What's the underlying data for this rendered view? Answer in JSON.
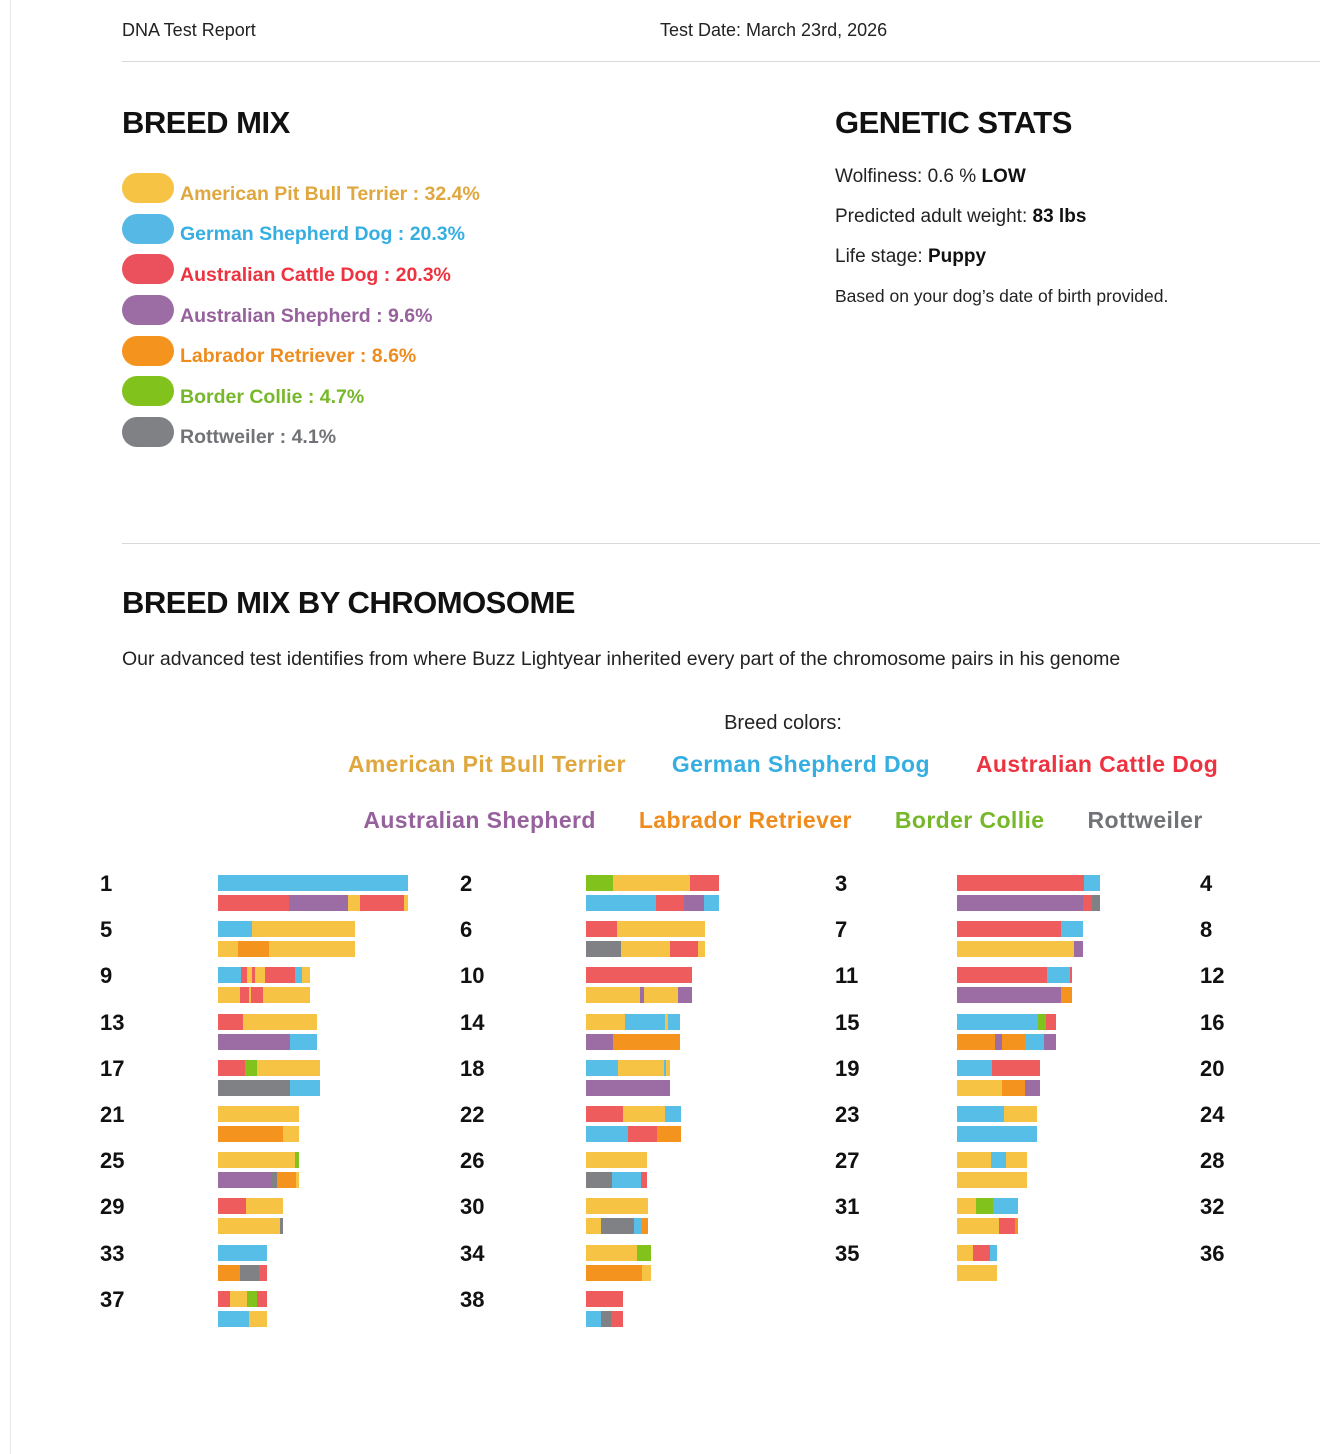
{
  "header": {
    "title": "DNA Test Report",
    "test_date": "Test Date: March 23rd, 2026"
  },
  "breed_mix": {
    "title": "BREED MIX",
    "items": [
      {
        "label": "American Pit Bull Terrier : 32.4%",
        "pill_color": "#F6C344",
        "text_color": "#DFA73D"
      },
      {
        "label": "German Shepherd Dog : 20.3%",
        "pill_color": "#56B8E4",
        "text_color": "#35AEE2"
      },
      {
        "label": "Australian Cattle Dog : 20.3%",
        "pill_color": "#EA515C",
        "text_color": "#EE3340"
      },
      {
        "label": "Australian Shepherd : 9.6%",
        "pill_color": "#9C6DA5",
        "text_color": "#96619C"
      },
      {
        "label": "Labrador Retriever : 8.6%",
        "pill_color": "#F4941F",
        "text_color": "#EE8C1E"
      },
      {
        "label": "Border Collie : 4.7%",
        "pill_color": "#82C21D",
        "text_color": "#77B82B"
      },
      {
        "label": "Rottweiler : 4.1%",
        "pill_color": "#7F8184",
        "text_color": "#717377"
      }
    ]
  },
  "genetic_stats": {
    "title": "GENETIC STATS",
    "lines": [
      {
        "prefix": "Wolfiness: 0.6 % ",
        "bold": "LOW"
      },
      {
        "prefix": "Predicted adult weight: ",
        "bold": "83 lbs"
      },
      {
        "prefix": "Life stage: ",
        "bold": "Puppy"
      }
    ],
    "note": "Based on your dog’s date of birth provided."
  },
  "chromosome_section": {
    "title": "BREED MIX BY CHROMOSOME",
    "description": "Our advanced test identifies from where Buzz Lightyear inherited every part of the chromosome pairs in his genome",
    "legend_title": "Breed colors:"
  },
  "chart_data": {
    "type": "bar",
    "subtype": "chromosome-paint-stacked-horizontal-bars",
    "title": "BREED MIX BY CHROMOSOME",
    "legend_position": "top-center",
    "breeds": [
      {
        "key": "apbt",
        "name": "American Pit Bull Terrier",
        "pct": 32.4,
        "color": "#F6C344",
        "text_color": "#DFA73D"
      },
      {
        "key": "gsd",
        "name": "German Shepherd Dog",
        "pct": 20.3,
        "color": "#57BFE7",
        "text_color": "#35AEE2"
      },
      {
        "key": "acd",
        "name": "Australian Cattle Dog",
        "pct": 20.3,
        "color": "#EE5C5D",
        "text_color": "#EE3340"
      },
      {
        "key": "as",
        "name": "Australian Shepherd",
        "pct": 9.6,
        "color": "#9C6DA5",
        "text_color": "#96619C"
      },
      {
        "key": "lab",
        "name": "Labrador Retriever",
        "pct": 8.6,
        "color": "#F4941F",
        "text_color": "#EE8C1E"
      },
      {
        "key": "bc",
        "name": "Border Collie",
        "pct": 4.7,
        "color": "#82C21D",
        "text_color": "#77B82B"
      },
      {
        "key": "rott",
        "name": "Rottweiler",
        "pct": 4.1,
        "color": "#7F8184",
        "text_color": "#717377"
      }
    ],
    "legend_rows": [
      [
        "apbt",
        "gsd",
        "acd"
      ],
      [
        "as",
        "lab",
        "bc",
        "rott"
      ]
    ],
    "segment_unit": "approx bar length in px (proportional to chromosome span); each chromosome shows its two copies (top/bottom)",
    "chromosomes": [
      {
        "n": 1,
        "pair": [
          [
            [
              "gsd",
              190
            ]
          ],
          [
            [
              "acd",
              71
            ],
            [
              "as",
              59
            ],
            [
              "apbt",
              12
            ],
            [
              "acd",
              44
            ],
            [
              "apbt",
              4
            ]
          ]
        ]
      },
      {
        "n": 2,
        "pair": [
          [
            [
              "bc",
              27
            ],
            [
              "apbt",
              77
            ],
            [
              "acd",
              29
            ]
          ],
          [
            [
              "gsd",
              70
            ],
            [
              "acd",
              28
            ],
            [
              "as",
              20
            ],
            [
              "gsd",
              15
            ]
          ]
        ]
      },
      {
        "n": 3,
        "pair": [
          [
            [
              "acd",
              127
            ],
            [
              "gsd",
              16
            ]
          ],
          [
            [
              "as",
              126
            ],
            [
              "acd",
              9
            ],
            [
              "rott",
              8
            ]
          ]
        ]
      },
      {
        "n": 4,
        "pair": [
          [],
          []
        ]
      },
      {
        "n": 5,
        "pair": [
          [
            [
              "gsd",
              34
            ],
            [
              "apbt",
              103
            ]
          ],
          [
            [
              "apbt",
              20
            ],
            [
              "lab",
              31
            ],
            [
              "apbt",
              86
            ]
          ]
        ]
      },
      {
        "n": 6,
        "pair": [
          [
            [
              "acd",
              31
            ],
            [
              "apbt",
              88
            ]
          ],
          [
            [
              "rott",
              35
            ],
            [
              "apbt",
              49
            ],
            [
              "acd",
              28
            ],
            [
              "apbt",
              7
            ]
          ]
        ]
      },
      {
        "n": 7,
        "pair": [
          [
            [
              "acd",
              104
            ],
            [
              "gsd",
              22
            ]
          ],
          [
            [
              "apbt",
              117
            ],
            [
              "as",
              9
            ]
          ]
        ]
      },
      {
        "n": 8,
        "pair": [
          [],
          []
        ]
      },
      {
        "n": 9,
        "pair": [
          [
            [
              "gsd",
              23
            ],
            [
              "acd",
              6
            ],
            [
              "apbt",
              5
            ],
            [
              "acd",
              3
            ],
            [
              "apbt",
              10
            ],
            [
              "acd",
              30
            ],
            [
              "gsd",
              7
            ],
            [
              "apbt",
              8
            ]
          ],
          [
            [
              "apbt",
              22
            ],
            [
              "acd",
              9
            ],
            [
              "apbt",
              2
            ],
            [
              "acd",
              12
            ],
            [
              "apbt",
              47
            ]
          ]
        ]
      },
      {
        "n": 10,
        "pair": [
          [
            [
              "acd",
              106
            ]
          ],
          [
            [
              "apbt",
              54
            ],
            [
              "as",
              4
            ],
            [
              "apbt",
              34
            ],
            [
              "as",
              14
            ]
          ]
        ]
      },
      {
        "n": 11,
        "pair": [
          [
            [
              "acd",
              90
            ],
            [
              "gsd",
              23
            ],
            [
              "acd",
              2
            ]
          ],
          [
            [
              "as",
              104
            ],
            [
              "lab",
              11
            ]
          ]
        ]
      },
      {
        "n": 12,
        "pair": [
          [],
          []
        ]
      },
      {
        "n": 13,
        "pair": [
          [
            [
              "acd",
              25
            ],
            [
              "apbt",
              74
            ]
          ],
          [
            [
              "as",
              72
            ],
            [
              "gsd",
              27
            ]
          ]
        ]
      },
      {
        "n": 14,
        "pair": [
          [
            [
              "apbt",
              39
            ],
            [
              "gsd",
              40
            ],
            [
              "apbt",
              3
            ],
            [
              "gsd",
              12
            ]
          ],
          [
            [
              "as",
              27
            ],
            [
              "lab",
              67
            ]
          ]
        ]
      },
      {
        "n": 15,
        "pair": [
          [
            [
              "gsd",
              81
            ],
            [
              "bc",
              8
            ],
            [
              "acd",
              10
            ]
          ],
          [
            [
              "lab",
              38
            ],
            [
              "as",
              7
            ],
            [
              "lab",
              23
            ],
            [
              "gsd",
              19
            ],
            [
              "as",
              12
            ]
          ]
        ]
      },
      {
        "n": 16,
        "pair": [
          [],
          []
        ]
      },
      {
        "n": 17,
        "pair": [
          [
            [
              "acd",
              27
            ],
            [
              "bc",
              12
            ],
            [
              "apbt",
              63
            ]
          ],
          [
            [
              "rott",
              72
            ],
            [
              "gsd",
              30
            ]
          ]
        ]
      },
      {
        "n": 18,
        "pair": [
          [
            [
              "gsd",
              32
            ],
            [
              "apbt",
              46
            ],
            [
              "gsd",
              2
            ],
            [
              "apbt",
              4
            ]
          ],
          [
            [
              "as",
              84
            ]
          ]
        ]
      },
      {
        "n": 19,
        "pair": [
          [
            [
              "gsd",
              35
            ],
            [
              "acd",
              48
            ]
          ],
          [
            [
              "apbt",
              45
            ],
            [
              "lab",
              23
            ],
            [
              "as",
              15
            ]
          ]
        ]
      },
      {
        "n": 20,
        "pair": [
          [],
          []
        ]
      },
      {
        "n": 21,
        "pair": [
          [
            [
              "apbt",
              81
            ]
          ],
          [
            [
              "lab",
              65
            ],
            [
              "apbt",
              16
            ]
          ]
        ]
      },
      {
        "n": 22,
        "pair": [
          [
            [
              "acd",
              37
            ],
            [
              "apbt",
              42
            ],
            [
              "gsd",
              16
            ]
          ],
          [
            [
              "gsd",
              42
            ],
            [
              "acd",
              29
            ],
            [
              "lab",
              24
            ]
          ]
        ]
      },
      {
        "n": 23,
        "pair": [
          [
            [
              "gsd",
              47
            ],
            [
              "apbt",
              33
            ]
          ],
          [
            [
              "gsd",
              80
            ]
          ]
        ]
      },
      {
        "n": 24,
        "pair": [
          [],
          []
        ]
      },
      {
        "n": 25,
        "pair": [
          [
            [
              "apbt",
              77
            ],
            [
              "bc",
              4
            ]
          ],
          [
            [
              "as",
              53
            ],
            [
              "rott",
              6
            ],
            [
              "lab",
              19
            ],
            [
              "apbt",
              3
            ]
          ]
        ]
      },
      {
        "n": 26,
        "pair": [
          [
            [
              "apbt",
              61
            ]
          ],
          [
            [
              "rott",
              26
            ],
            [
              "gsd",
              29
            ],
            [
              "acd",
              6
            ]
          ]
        ]
      },
      {
        "n": 27,
        "pair": [
          [
            [
              "apbt",
              34
            ],
            [
              "gsd",
              15
            ],
            [
              "apbt",
              21
            ]
          ],
          [
            [
              "apbt",
              70
            ]
          ]
        ]
      },
      {
        "n": 28,
        "pair": [
          [],
          []
        ]
      },
      {
        "n": 29,
        "pair": [
          [
            [
              "acd",
              28
            ],
            [
              "apbt",
              37
            ]
          ],
          [
            [
              "apbt",
              62
            ],
            [
              "rott",
              3
            ]
          ]
        ]
      },
      {
        "n": 30,
        "pair": [
          [
            [
              "apbt",
              62
            ]
          ],
          [
            [
              "apbt",
              15
            ],
            [
              "rott",
              33
            ],
            [
              "gsd",
              8
            ],
            [
              "lab",
              6
            ]
          ]
        ]
      },
      {
        "n": 31,
        "pair": [
          [
            [
              "apbt",
              19
            ],
            [
              "bc",
              17
            ],
            [
              "gsd",
              25
            ]
          ],
          [
            [
              "apbt",
              42
            ],
            [
              "acd",
              16
            ],
            [
              "lab",
              3
            ]
          ]
        ]
      },
      {
        "n": 32,
        "pair": [
          [],
          []
        ]
      },
      {
        "n": 33,
        "pair": [
          [
            [
              "gsd",
              49
            ]
          ],
          [
            [
              "lab",
              22
            ],
            [
              "rott",
              19
            ],
            [
              "acd",
              8
            ]
          ]
        ]
      },
      {
        "n": 34,
        "pair": [
          [
            [
              "apbt",
              51
            ],
            [
              "bc",
              14
            ]
          ],
          [
            [
              "lab",
              56
            ],
            [
              "apbt",
              9
            ]
          ]
        ]
      },
      {
        "n": 35,
        "pair": [
          [
            [
              "apbt",
              16
            ],
            [
              "acd",
              17
            ],
            [
              "gsd",
              7
            ]
          ],
          [
            [
              "apbt",
              40
            ]
          ]
        ]
      },
      {
        "n": 36,
        "pair": [
          [],
          []
        ]
      },
      {
        "n": 37,
        "pair": [
          [
            [
              "acd",
              12
            ],
            [
              "apbt",
              17
            ],
            [
              "bc",
              10
            ],
            [
              "acd",
              10
            ]
          ],
          [
            [
              "gsd",
              31
            ],
            [
              "apbt",
              18
            ]
          ]
        ]
      },
      {
        "n": 38,
        "pair": [
          [
            [
              "acd",
              37
            ]
          ],
          [
            [
              "gsd",
              15
            ],
            [
              "rott",
              10
            ],
            [
              "acd",
              12
            ]
          ]
        ]
      }
    ]
  }
}
